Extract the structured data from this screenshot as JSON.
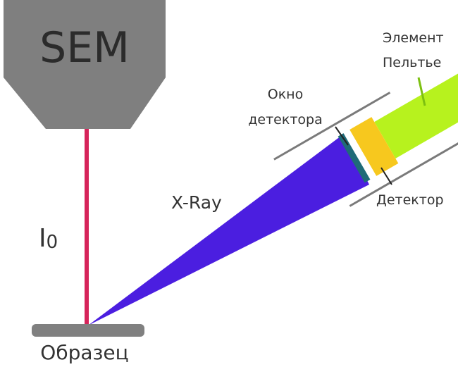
{
  "sem": {
    "label": "SEM"
  },
  "beam": {
    "label": "I",
    "subscript": "0"
  },
  "xray": {
    "label": "X-Ray"
  },
  "sample": {
    "label": "Образец"
  },
  "window": {
    "label": [
      "Окно",
      "детектора"
    ]
  },
  "peltier": {
    "label": [
      "Элемент",
      "Пельтье"
    ]
  },
  "detector": {
    "label": "Детектор"
  }
}
